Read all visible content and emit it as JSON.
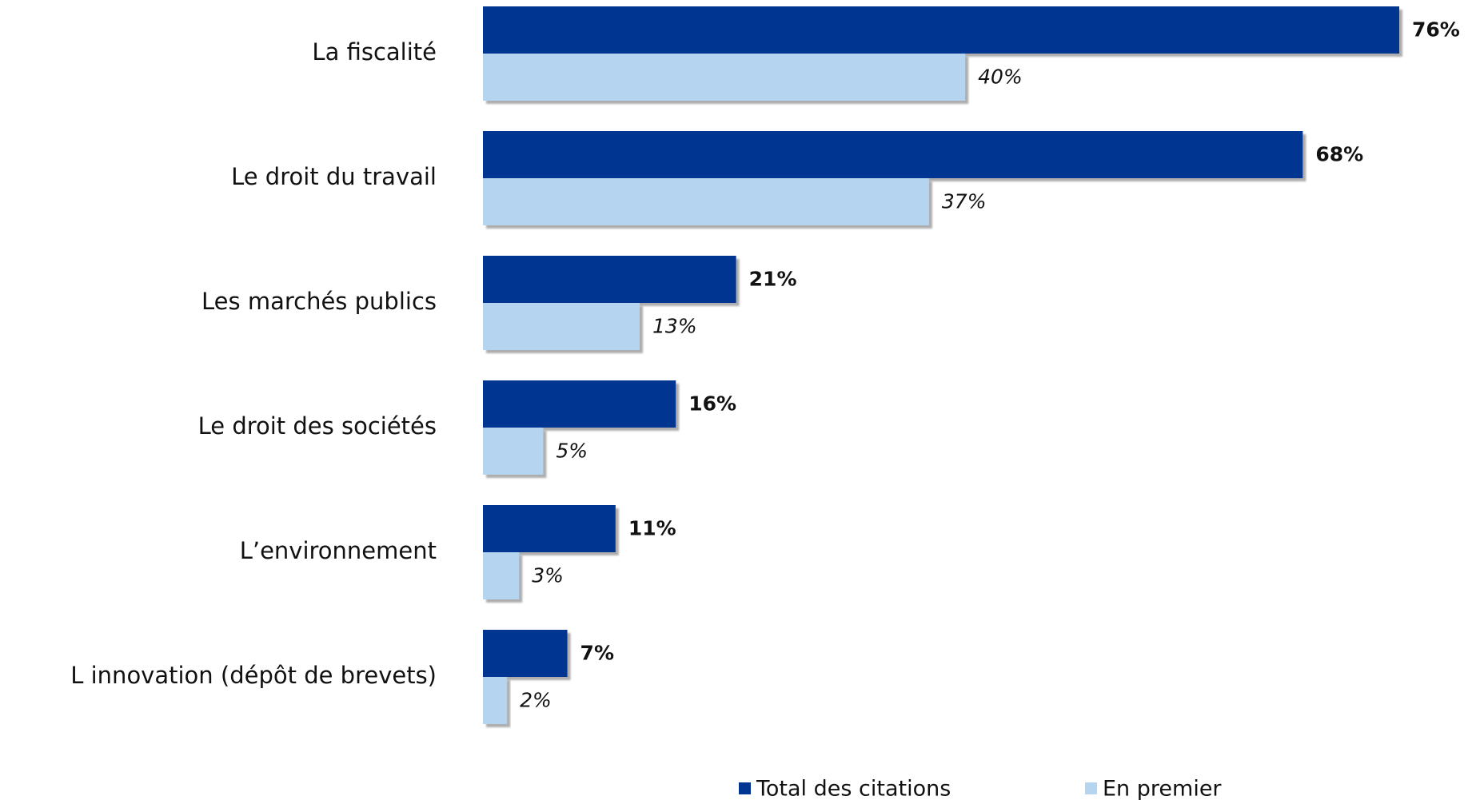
{
  "chart_data": {
    "type": "barh",
    "categories": [
      "La fiscalité",
      "Le droit du travail",
      "Les marchés publics",
      "Le droit des sociétés",
      "L’environnement",
      "L innovation (dépôt de brevets)"
    ],
    "series": [
      {
        "name": "Total des citations",
        "color": "#003591",
        "values": [
          76,
          68,
          21,
          16,
          11,
          7
        ],
        "value_labels": [
          "76%",
          "68%",
          "21%",
          "16%",
          "11%",
          "7%"
        ]
      },
      {
        "name": "En premier",
        "color": "#b4d4ef",
        "values": [
          40,
          37,
          13,
          5,
          3,
          2
        ],
        "value_labels": [
          "40%",
          "37%",
          "13%",
          "5%",
          "3%",
          "2%"
        ]
      }
    ]
  }
}
